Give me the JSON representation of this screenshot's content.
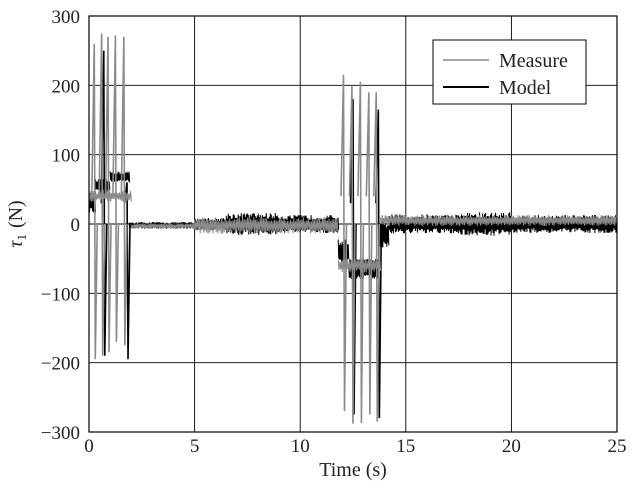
{
  "chart_data": {
    "type": "line",
    "xlabel": "Time (s)",
    "ylabel_symbol": "τ",
    "ylabel_subscript": "1",
    "ylabel_unit": "(N)",
    "xlim": [
      0,
      25
    ],
    "ylim": [
      -300,
      300
    ],
    "xticks": [
      0,
      5,
      10,
      15,
      20,
      25
    ],
    "yticks": [
      300,
      200,
      100,
      0,
      -100,
      -200,
      -300
    ],
    "xtick_labels": [
      "0",
      "5",
      "10",
      "15",
      "20",
      "25"
    ],
    "ytick_labels": [
      "300",
      "200",
      "100",
      "0",
      "−100",
      "−200",
      "−300"
    ],
    "grid": true,
    "legend_position": "top-right",
    "colors": {
      "measure": "#8a8a8a",
      "model": "#000000",
      "axis": "#000000",
      "grid": "#000000"
    },
    "series": [
      {
        "name": "Measure",
        "style": "gray",
        "segments": [
          {
            "t": [
              0.0,
              2.0
            ],
            "base": 40,
            "noise": 8
          },
          {
            "t": [
              2.0,
              5.0
            ],
            "base": -3,
            "noise": 4
          },
          {
            "t": [
              5.0,
              11.8
            ],
            "base": -2,
            "noise": 12
          },
          {
            "t": [
              11.8,
              13.8
            ],
            "base": -60,
            "noise": 10
          },
          {
            "t": [
              13.8,
              25.0
            ],
            "base": 5,
            "noise": 8
          }
        ],
        "spikes": [
          {
            "t": 0.25,
            "max": 260,
            "min": -195
          },
          {
            "t": 0.6,
            "max": 275,
            "min": -190
          },
          {
            "t": 0.9,
            "max": 270,
            "min": -185
          },
          {
            "t": 1.25,
            "max": 272,
            "min": -170
          },
          {
            "t": 1.65,
            "max": 270,
            "min": -175
          },
          {
            "t": 12.05,
            "max": 215,
            "min": -270
          },
          {
            "t": 12.45,
            "max": 200,
            "min": -288
          },
          {
            "t": 12.85,
            "max": 205,
            "min": -287
          },
          {
            "t": 13.25,
            "max": 190,
            "min": -275
          },
          {
            "t": 13.6,
            "max": 190,
            "min": -285
          }
        ]
      },
      {
        "name": "Model",
        "style": "black",
        "segments": [
          {
            "t": [
              0.0,
              0.3
            ],
            "base": 30,
            "noise": 15
          },
          {
            "t": [
              0.3,
              1.0
            ],
            "base": 55,
            "noise": 10
          },
          {
            "t": [
              1.0,
              1.9
            ],
            "base": 68,
            "noise": 8
          },
          {
            "t": [
              1.9,
              5.0
            ],
            "base": -2,
            "noise": 5
          },
          {
            "t": [
              5.0,
              6.5
            ],
            "base": 0,
            "noise": 9
          },
          {
            "t": [
              6.5,
              9.0
            ],
            "base": 0,
            "noise": 16
          },
          {
            "t": [
              9.0,
              11.8
            ],
            "base": 0,
            "noise": 13
          },
          {
            "t": [
              11.8,
              12.3
            ],
            "base": -40,
            "noise": 18
          },
          {
            "t": [
              12.3,
              13.7
            ],
            "base": -65,
            "noise": 15
          },
          {
            "t": [
              13.7,
              14.2
            ],
            "base": -15,
            "noise": 20
          },
          {
            "t": [
              14.2,
              17.5
            ],
            "base": 0,
            "noise": 14
          },
          {
            "t": [
              17.5,
              20.0
            ],
            "base": 0,
            "noise": 17
          },
          {
            "t": [
              20.0,
              25.0
            ],
            "base": 0,
            "noise": 13
          }
        ],
        "spikes": [
          {
            "t": 0.7,
            "max": 250,
            "min": -190
          },
          {
            "t": 1.8,
            "max": 60,
            "min": -195
          },
          {
            "t": 12.5,
            "max": 180,
            "min": -275
          },
          {
            "t": 13.7,
            "max": 165,
            "min": -280
          }
        ]
      }
    ]
  }
}
